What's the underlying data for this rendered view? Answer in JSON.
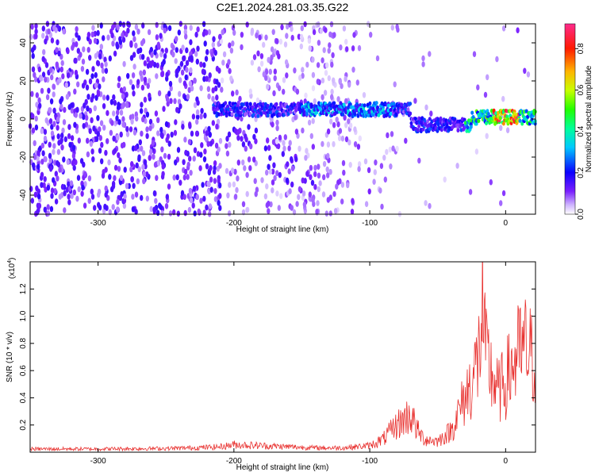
{
  "figure": {
    "title": "C2E1.2024.281.03.35.G22"
  },
  "chart_data": [
    {
      "type": "heatmap",
      "xlabel": "Height of straight line (km)",
      "ylabel": "Frequency (Hz)",
      "xlim": [
        -350,
        22
      ],
      "ylim": [
        -50,
        50
      ],
      "xticks": [
        -300,
        -200,
        -100,
        0
      ],
      "yticks": [
        -40,
        -20,
        0,
        20,
        40
      ],
      "colorbar": {
        "label": "Normalized spectral amplitude",
        "range": [
          0,
          0.92
        ],
        "ticks": [
          0.0,
          0.2,
          0.4,
          0.6,
          0.8
        ],
        "tick_labels": [
          "0.0",
          "0.2",
          "0.4",
          "0.6",
          "0.8"
        ],
        "colormap": "rainbow (white to purple to blue to cyan to green to yellow to red to magenta)"
      },
      "signal_band": {
        "center_frequency_segments": [
          {
            "x_from": -215,
            "x_to": -70,
            "frequency": 5
          },
          {
            "x_from": -70,
            "x_to": -45,
            "frequency": -3
          },
          {
            "x_from": -45,
            "x_to": -25,
            "frequency": -3
          },
          {
            "x_from": -25,
            "x_to": 22,
            "frequency": 1
          }
        ],
        "peak_amplitude_near_x": [
          -10,
          10
        ],
        "peak_amplitude": 0.9
      },
      "grid": false
    },
    {
      "type": "line",
      "series": [
        {
          "color": "#e8302e",
          "x": [
            -350,
            -300,
            -250,
            -230,
            -210,
            -200,
            -180,
            -160,
            -140,
            -120,
            -100,
            -90,
            -80,
            -70,
            -65,
            -60,
            -50,
            -40,
            -30,
            -25,
            -20,
            -17,
            -15,
            -10,
            -5,
            0,
            5,
            10,
            15,
            20,
            22
          ],
          "y": [
            0.03,
            0.03,
            0.035,
            0.04,
            0.05,
            0.07,
            0.06,
            0.05,
            0.04,
            0.04,
            0.06,
            0.12,
            0.25,
            0.35,
            0.2,
            0.12,
            0.1,
            0.2,
            0.5,
            0.65,
            0.85,
            1.35,
            0.9,
            0.7,
            0.55,
            0.65,
            0.8,
            0.9,
            0.95,
            0.85,
            0.9
          ]
        }
      ],
      "xlabel": "Height of straight line (km)",
      "ylabel": "SNR (10 * v/v)",
      "y_multiplier": "(x10",
      "y_multiplier_exp": "4",
      "y_multiplier_close": ")",
      "xlim": [
        -350,
        22
      ],
      "ylim": [
        0,
        1.4
      ],
      "xticks": [
        -300,
        -200,
        -100,
        0
      ],
      "yticks": [
        0.2,
        0.4,
        0.6,
        0.8,
        1.0,
        1.2
      ],
      "ytick_labels": [
        "0.2",
        "0.4",
        "0.6",
        "0.8",
        "1.0",
        "1.2"
      ],
      "grid": false
    }
  ]
}
